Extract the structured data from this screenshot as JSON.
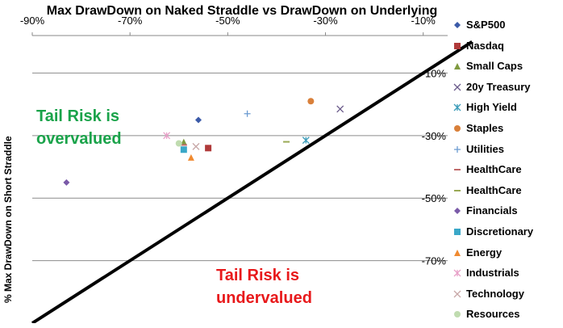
{
  "chart_data": {
    "type": "scatter",
    "title": "Max DrawDown on Naked Straddle vs DrawDown on Underlying",
    "xlabel": "",
    "ylabel": "% Max DrawDown on Short Straddle",
    "xlim": [
      -0.9,
      -0.05
    ],
    "ylim": [
      -0.9,
      0.02
    ],
    "x_ticks": [
      "-90%",
      "-70%",
      "-50%",
      "-30%",
      "-10%"
    ],
    "y_ticks": [
      "-10%",
      "-30%",
      "-50%",
      "-70%"
    ],
    "grid": true,
    "legend_position": "right",
    "annotations": [
      {
        "text_lines": [
          "Tail Risk is",
          "overvalued"
        ],
        "color": "#1aa34a"
      },
      {
        "text_lines": [
          "Tail Risk is",
          "undervalued"
        ],
        "color": "#e8191b"
      }
    ],
    "reference_line": {
      "from": [
        -0.9,
        -0.9
      ],
      "to": [
        0.0,
        0.0
      ]
    },
    "series": [
      {
        "name": "S&P500",
        "color": "#3b5aa8",
        "marker": "diamond",
        "x": [
          -0.56
        ],
        "y": [
          -0.25
        ]
      },
      {
        "name": "Nasdaq",
        "color": "#b03a3a",
        "marker": "square",
        "x": [
          -0.54
        ],
        "y": [
          -0.34
        ]
      },
      {
        "name": "Small Caps",
        "color": "#7f9a3f",
        "marker": "triangle",
        "x": [
          -0.59
        ],
        "y": [
          -0.32
        ]
      },
      {
        "name": "20y Treasury",
        "color": "#6a5a8a",
        "marker": "x",
        "x": [
          -0.27
        ],
        "y": [
          -0.215
        ]
      },
      {
        "name": "High Yield",
        "color": "#3a9bb8",
        "marker": "asterisk",
        "x": [
          -0.34
        ],
        "y": [
          -0.315
        ]
      },
      {
        "name": "Staples",
        "color": "#d9803a",
        "marker": "circle",
        "x": [
          -0.33
        ],
        "y": [
          -0.19
        ]
      },
      {
        "name": "Utilities",
        "color": "#6b9bd1",
        "marker": "plus",
        "x": [
          -0.46
        ],
        "y": [
          -0.23
        ]
      },
      {
        "name": "HealthCare",
        "color": "#c06a6a",
        "marker": "dash",
        "x": [
          -0.59
        ],
        "y": [
          -0.33
        ]
      },
      {
        "name": "HealthCare",
        "color": "#9aaa55",
        "marker": "dash",
        "x": [
          -0.38
        ],
        "y": [
          -0.32
        ]
      },
      {
        "name": "Financials",
        "color": "#7a5aa8",
        "marker": "diamond",
        "x": [
          -0.83
        ],
        "y": [
          -0.45
        ]
      },
      {
        "name": "Discretionary",
        "color": "#3aa8c8",
        "marker": "square",
        "x": [
          -0.59
        ],
        "y": [
          -0.345
        ]
      },
      {
        "name": "Energy",
        "color": "#f08a30",
        "marker": "triangle",
        "x": [
          -0.575
        ],
        "y": [
          -0.37
        ]
      },
      {
        "name": "Industrials",
        "color": "#e8a0c8",
        "marker": "asterisk",
        "x": [
          -0.625
        ],
        "y": [
          -0.3
        ]
      },
      {
        "name": "Technology",
        "color": "#c8a8a8",
        "marker": "x",
        "x": [
          -0.565
        ],
        "y": [
          -0.335
        ]
      },
      {
        "name": "Resources",
        "color": "#c0dcb0",
        "marker": "circle",
        "x": [
          -0.6
        ],
        "y": [
          -0.325
        ]
      }
    ]
  }
}
